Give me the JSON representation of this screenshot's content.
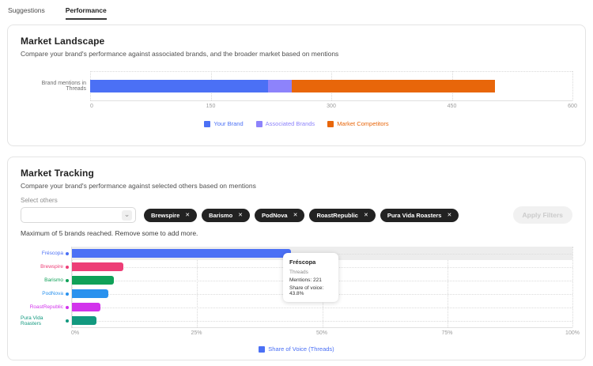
{
  "tabs": [
    {
      "label": "Suggestions",
      "active": false
    },
    {
      "label": "Performance",
      "active": true
    }
  ],
  "landscape": {
    "title": "Market Landscape",
    "subtitle": "Compare your brand's performance against associated brands, and the broader market based on mentions",
    "row_label": "Brand mentions in Threads",
    "legend": [
      {
        "label": "Your Brand",
        "color": "#4b70f5"
      },
      {
        "label": "Associated Brands",
        "color": "#8d83fb"
      },
      {
        "label": "Market Competitors",
        "color": "#e8660a"
      }
    ]
  },
  "tracking": {
    "title": "Market Tracking",
    "subtitle": "Compare your brand's performance against selected others based on mentions",
    "select_label": "Select others",
    "chips": [
      "Brewspire",
      "Barismo",
      "PodNova",
      "RoastRepublic",
      "Pura Vida Roasters"
    ],
    "chip_close_glyph": "✕",
    "apply_button": "Apply Filters",
    "max_note": "Maximum of 5 brands reached. Remove some to add more.",
    "legend_label": "Share of Voice (Threads)",
    "legend_color": "#4b70f5",
    "tooltip": {
      "title": "Fréscopa",
      "platform": "Threads",
      "mentions": "Mentions: 221",
      "share": "Share of voice: 43.8%"
    }
  },
  "chart_data": [
    {
      "type": "bar",
      "orientation": "horizontal",
      "stacked": true,
      "categories": [
        "Brand mentions in Threads"
      ],
      "series": [
        {
          "name": "Your Brand",
          "values": [
            221
          ],
          "color": "#4b70f5"
        },
        {
          "name": "Associated Brands",
          "values": [
            30
          ],
          "color": "#8d83fb"
        },
        {
          "name": "Market Competitors",
          "values": [
            253
          ],
          "color": "#e8660a"
        }
      ],
      "xlim": [
        0,
        600
      ],
      "xticks": [
        0,
        150,
        300,
        450,
        600
      ],
      "grid": "dotted"
    },
    {
      "type": "bar",
      "orientation": "horizontal",
      "title": "Share of Voice (Threads)",
      "categories": [
        "Fréscopa",
        "Brewspire",
        "Barismo",
        "PodNova",
        "RoastRepublic",
        "Pura Vida Roasters"
      ],
      "values": [
        43.8,
        10.2,
        8.3,
        7.3,
        5.7,
        4.9
      ],
      "unit": "%",
      "colors": [
        "#4b70f5",
        "#ed3e77",
        "#0fa158",
        "#2a92ee",
        "#d233ec",
        "#12997f"
      ],
      "xlim": [
        0,
        100
      ],
      "xticks": [
        "0%",
        "25%",
        "50%",
        "75%",
        "100%"
      ],
      "highlighted_category": "Fréscopa",
      "highlight_band_color": "#ededed",
      "grid": "dotted",
      "legend_position": "bottom"
    }
  ]
}
